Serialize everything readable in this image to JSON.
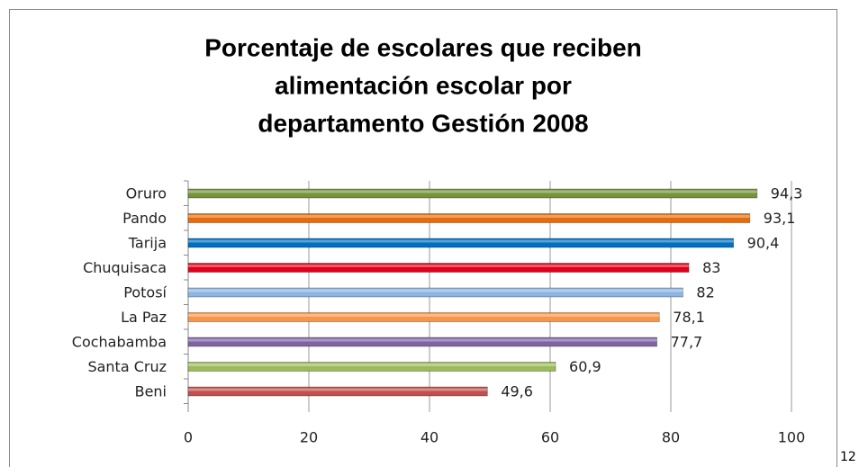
{
  "chart_data": {
    "type": "hbar",
    "title": [
      "Porcentaje de escolares que reciben",
      "alimentación escolar  por",
      "departamento Gestión 2008"
    ],
    "categories": [
      "Oruro",
      "Pando",
      "Tarija",
      "Chuquisaca",
      "Potosí",
      "La Paz",
      "Cochabamba",
      "Santa Cruz",
      "Beni"
    ],
    "values": [
      94.3,
      93.1,
      90.4,
      83,
      82,
      78.1,
      77.7,
      60.9,
      49.6
    ],
    "value_labels": [
      "94,3",
      "93,1",
      "90,4",
      "83",
      "82",
      "78,1",
      "77,7",
      "60,9",
      "49,6"
    ],
    "colors": [
      "#77933c",
      "#e46c0a",
      "#0070c0",
      "#e0001b",
      "#8db4e2",
      "#f79646",
      "#8064a2",
      "#9bbb59",
      "#c0504d"
    ],
    "xlim": [
      0,
      100
    ],
    "xticks": [
      0,
      20,
      40,
      60,
      80,
      100
    ],
    "grid": true
  },
  "footer": "12"
}
